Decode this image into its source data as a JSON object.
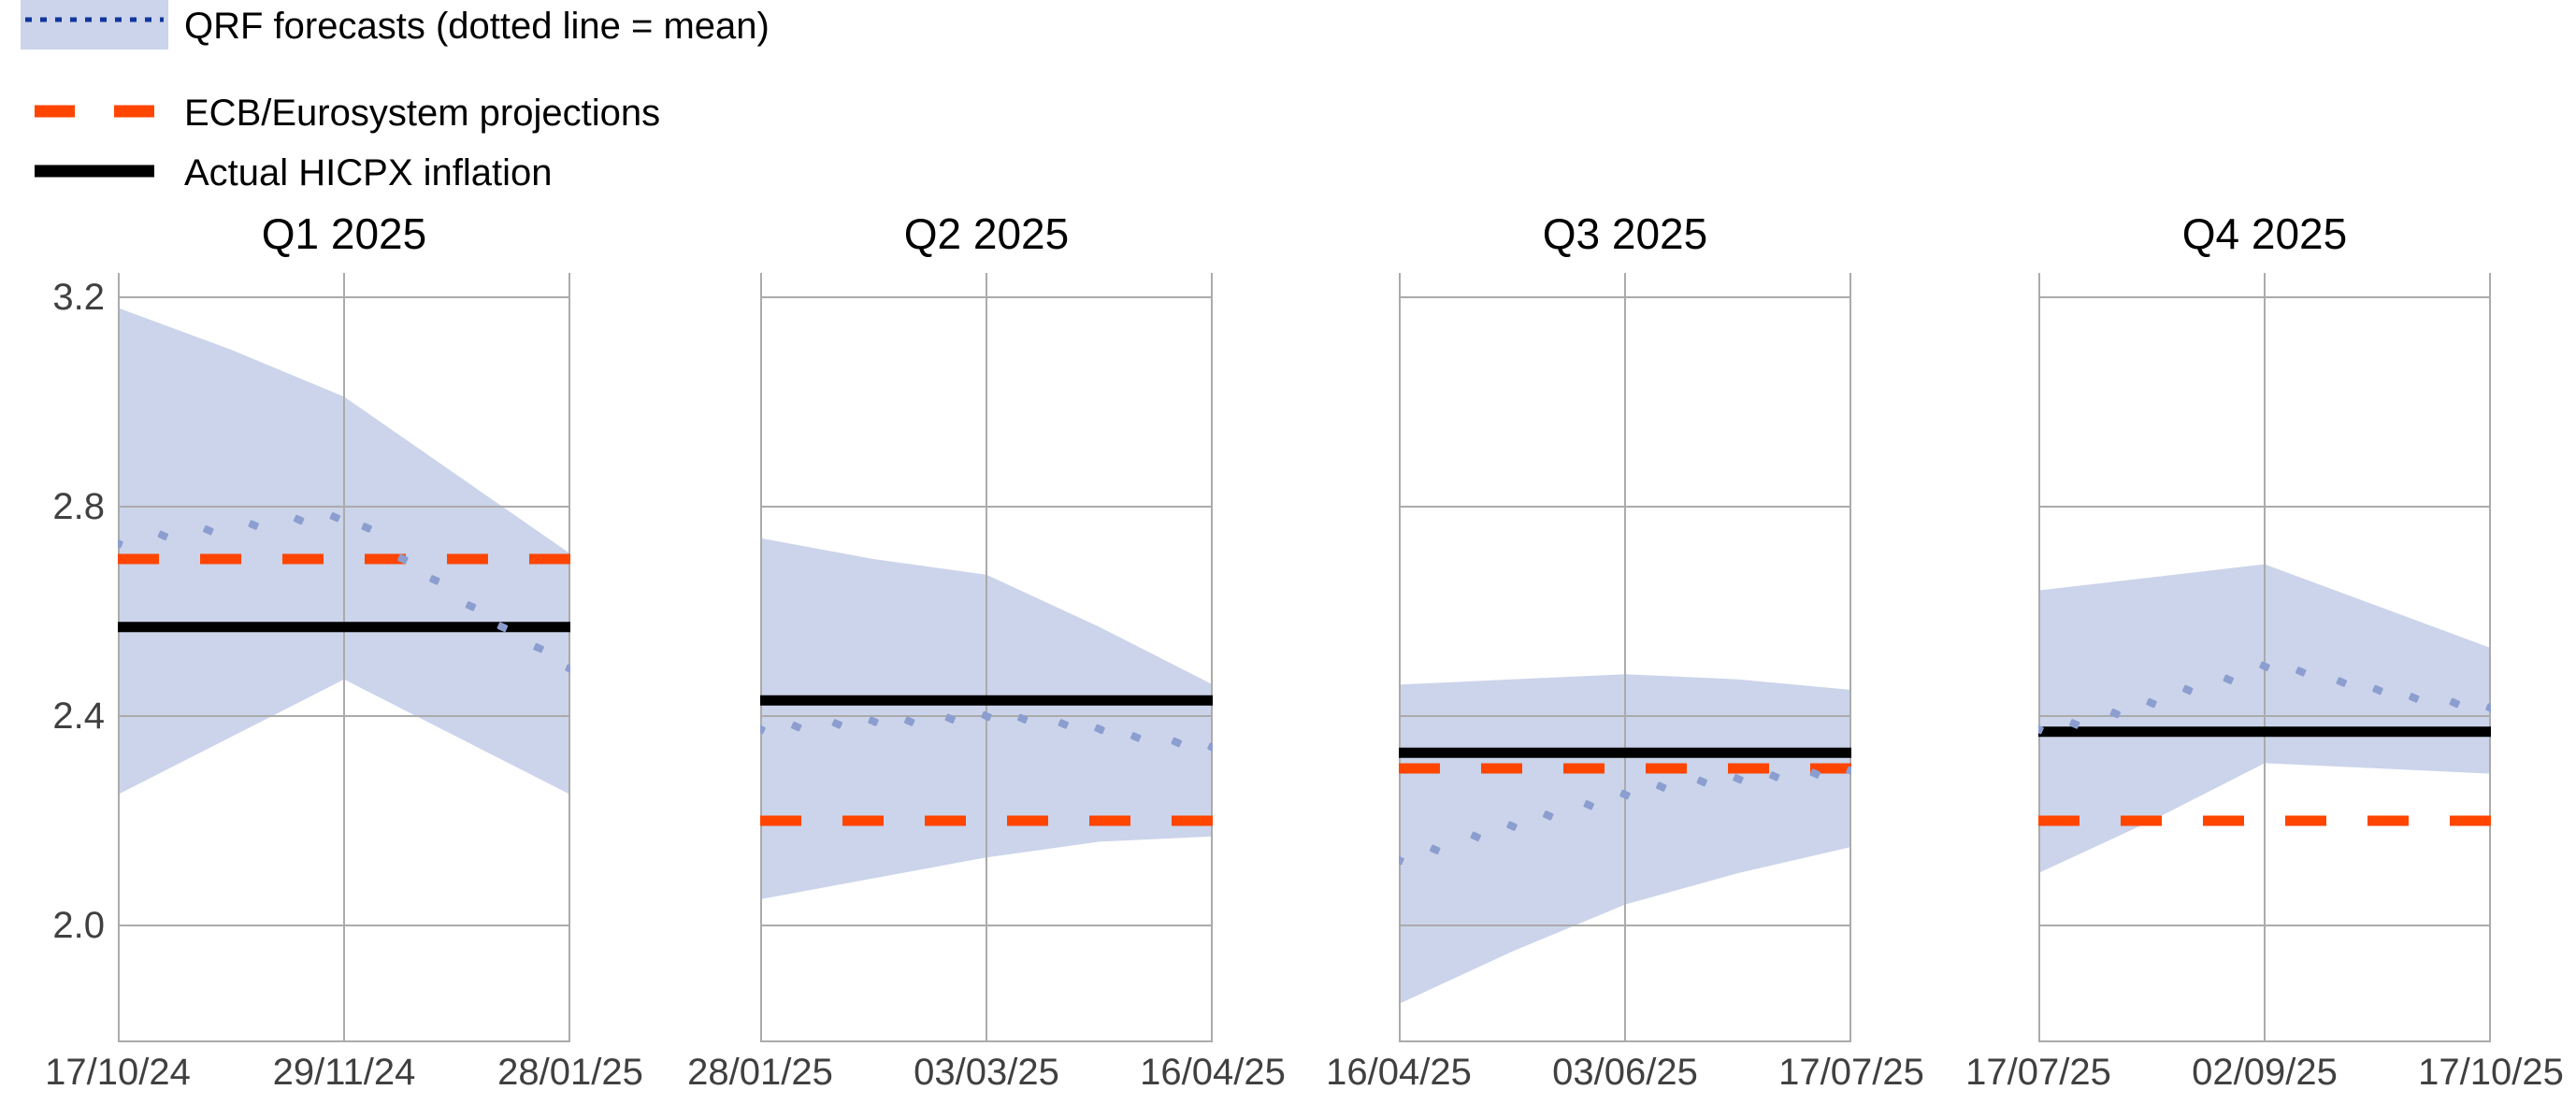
{
  "legend": {
    "items": [
      {
        "id": "qrf",
        "label": "QRF forecasts (dotted line = mean)",
        "key_type": "band-with-dotted-line",
        "band_color": "#cbd4ea",
        "line_color": "#10369e"
      },
      {
        "id": "ecb",
        "label": "ECB/Eurosystem projections",
        "key_type": "dashed-line",
        "line_color": "#ff4500"
      },
      {
        "id": "actual",
        "label": "Actual HICPX inflation",
        "key_type": "solid-line",
        "line_color": "#000000"
      }
    ]
  },
  "style": {
    "band_color": "#cbd4ea",
    "qrf_dot_color": "#8c9ecf",
    "ecb_color": "#ff4500",
    "actual_color": "#000000",
    "grid_color": "#ababab",
    "tick_text_color": "#404040"
  },
  "chart_data": {
    "type": "area",
    "subtype": "fan-chart with mean dotted line, flat actual and projection lines, 4 facets",
    "grid": "on",
    "y_axis": {
      "ticks": [
        "3.2",
        "2.8",
        "2.4",
        "2.0"
      ],
      "tick_values": [
        3.2,
        2.8,
        2.4,
        2.0
      ],
      "ylim_top_value": 3.2465,
      "ylim_bottom_value": 1.777
    },
    "panels": [
      {
        "title": "Q1 2025",
        "x_tick_labels": [
          "17/10/24",
          "29/11/24",
          "28/01/25"
        ],
        "actual_hicpx": 2.57,
        "ecb_projection": 2.7,
        "band": {
          "x": [
            0,
            0.25,
            0.5,
            0.75,
            1
          ],
          "upper": [
            3.18,
            3.1,
            3.01,
            2.86,
            2.71
          ],
          "lower": [
            2.25,
            2.36,
            2.47,
            2.36,
            2.25
          ]
        },
        "qrf_mean": {
          "x": [
            0,
            0.1,
            0.2,
            0.3,
            0.4,
            0.48,
            0.55,
            0.63,
            0.7,
            0.78,
            0.85,
            0.93,
            1
          ],
          "y": [
            2.73,
            2.745,
            2.755,
            2.765,
            2.775,
            2.78,
            2.76,
            2.7,
            2.66,
            2.61,
            2.57,
            2.53,
            2.49
          ]
        }
      },
      {
        "title": "Q2 2025",
        "x_tick_labels": [
          "28/01/25",
          "03/03/25",
          "16/04/25"
        ],
        "actual_hicpx": 2.43,
        "ecb_projection": 2.2,
        "band": {
          "x": [
            0,
            0.25,
            0.5,
            0.75,
            1
          ],
          "upper": [
            2.74,
            2.7,
            2.67,
            2.57,
            2.46
          ],
          "lower": [
            2.05,
            2.09,
            2.13,
            2.16,
            2.17
          ]
        },
        "qrf_mean": {
          "x": [
            0,
            0.08,
            0.17,
            0.25,
            0.33,
            0.42,
            0.5,
            0.58,
            0.67,
            0.75,
            0.83,
            0.92,
            1
          ],
          "y": [
            2.375,
            2.38,
            2.385,
            2.39,
            2.39,
            2.395,
            2.4,
            2.395,
            2.385,
            2.375,
            2.36,
            2.35,
            2.34
          ]
        }
      },
      {
        "title": "Q3 2025",
        "x_tick_labels": [
          "16/04/25",
          "03/06/25",
          "17/07/25"
        ],
        "actual_hicpx": 2.33,
        "ecb_projection": 2.3,
        "band": {
          "x": [
            0,
            0.25,
            0.5,
            0.75,
            1
          ],
          "upper": [
            2.46,
            2.47,
            2.48,
            2.47,
            2.45
          ],
          "lower": [
            1.85,
            1.95,
            2.04,
            2.1,
            2.15
          ]
        },
        "qrf_mean": {
          "x": [
            0,
            0.08,
            0.17,
            0.25,
            0.33,
            0.42,
            0.5,
            0.58,
            0.67,
            0.75,
            0.83,
            0.92,
            1
          ],
          "y": [
            2.125,
            2.145,
            2.17,
            2.19,
            2.21,
            2.23,
            2.25,
            2.265,
            2.275,
            2.28,
            2.285,
            2.29,
            2.295
          ]
        }
      },
      {
        "title": "Q4 2025",
        "x_tick_labels": [
          "17/07/25",
          "02/09/25",
          "17/10/25"
        ],
        "actual_hicpx": 2.37,
        "ecb_projection": 2.2,
        "band": {
          "x": [
            0,
            0.25,
            0.5,
            0.75,
            1
          ],
          "upper": [
            2.64,
            2.665,
            2.69,
            2.61,
            2.53
          ],
          "lower": [
            2.1,
            2.2,
            2.31,
            2.3,
            2.29
          ]
        },
        "qrf_mean": {
          "x": [
            0,
            0.08,
            0.17,
            0.25,
            0.33,
            0.42,
            0.5,
            0.58,
            0.67,
            0.75,
            0.83,
            0.92,
            1
          ],
          "y": [
            2.375,
            2.385,
            2.405,
            2.425,
            2.45,
            2.47,
            2.495,
            2.485,
            2.465,
            2.45,
            2.435,
            2.425,
            2.415
          ]
        }
      }
    ]
  }
}
